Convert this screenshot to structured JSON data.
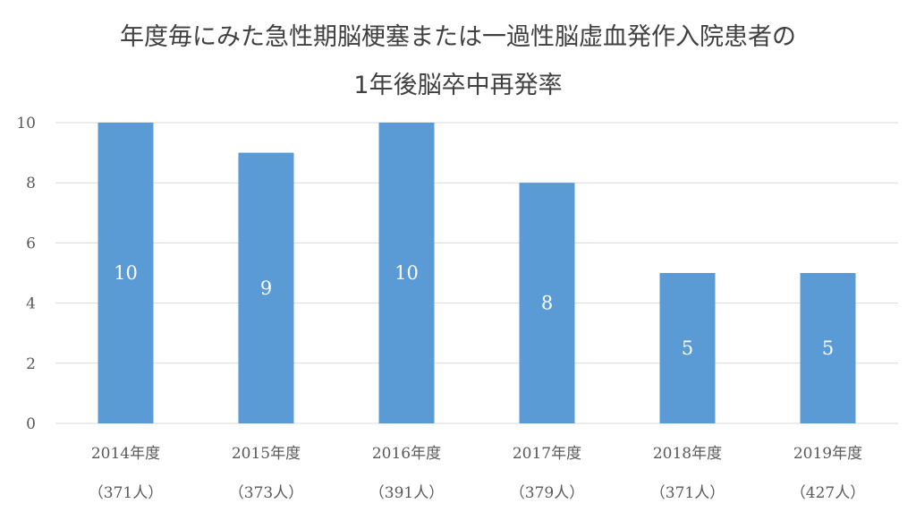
{
  "chart_data": {
    "type": "bar",
    "title_line1": "年度毎にみた急性期脳梗塞または一過性脳虚血発作入院患者の",
    "title_line2": "1年後脳卒中再発率",
    "categories": [
      "2014年度",
      "2015年度",
      "2016年度",
      "2017年度",
      "2018年度",
      "2019年度"
    ],
    "subcategories": [
      "（371人）",
      "（373人）",
      "（391人）",
      "（379人）",
      "（371人）",
      "（427人）"
    ],
    "values": [
      10,
      9,
      10,
      8,
      5,
      5
    ],
    "data_labels": [
      "10",
      "9",
      "10",
      "8",
      "5",
      "5"
    ],
    "ylim": [
      0,
      10
    ],
    "yticks": [
      0,
      2,
      4,
      6,
      8,
      10
    ],
    "grid": true,
    "legend": "none",
    "bar_color": "#5B9BD5",
    "grid_color": "#D9D9D9"
  }
}
